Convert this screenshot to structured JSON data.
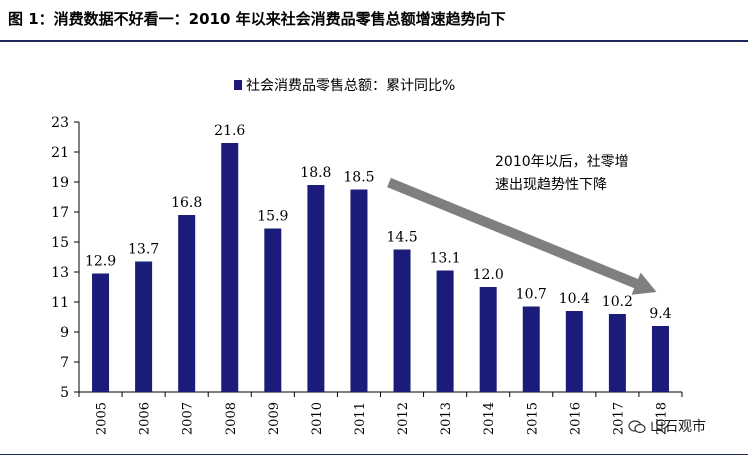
{
  "figure_title": "图 1：消费数据不好看一：2010 年以来社会消费品零售总额增速趋势向下",
  "watermark_text": "山石观市",
  "colors": {
    "bar": "#1b1b7a",
    "arrow": "#7f7f7f",
    "rule": "#1f2a5c"
  },
  "chart_data": {
    "type": "bar",
    "categories": [
      "2005",
      "2006",
      "2007",
      "2008",
      "2009",
      "2010",
      "2011",
      "2012",
      "2013",
      "2014",
      "2015",
      "2016",
      "2017",
      "2018"
    ],
    "series": [
      {
        "name": "社会消费品零售总额：累计同比%",
        "values": [
          12.9,
          13.7,
          16.8,
          21.6,
          15.9,
          18.8,
          18.5,
          14.5,
          13.1,
          12.0,
          10.7,
          10.4,
          10.2,
          9.4
        ]
      }
    ],
    "data_labels": [
      "12.9",
      "13.7",
      "16.8",
      "21.6",
      "15.9",
      "18.8",
      "18.5",
      "14.5",
      "13.1",
      "12.0",
      "10.7",
      "10.4",
      "10.2",
      "9.4"
    ],
    "ylim": [
      5,
      23
    ],
    "yticks": [
      5,
      7,
      9,
      11,
      13,
      15,
      17,
      19,
      21,
      23
    ],
    "xlabel": "",
    "ylabel": "",
    "legend": "top-center",
    "grid": false,
    "annotation": {
      "text_line1": "2010年以后，社零增",
      "text_line2": "速出现趋势性下降",
      "arrow_from_category": "2011",
      "arrow_to_category": "2018"
    }
  }
}
